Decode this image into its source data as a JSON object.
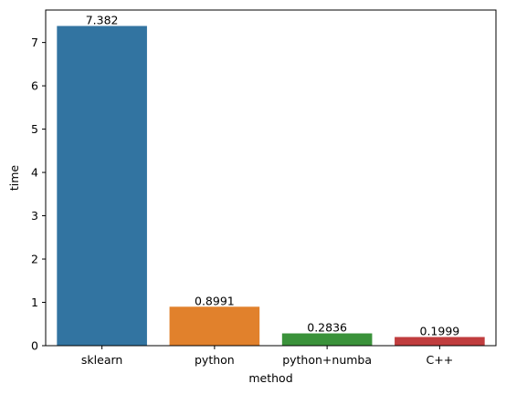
{
  "chart_data": {
    "type": "bar",
    "categories": [
      "sklearn",
      "python",
      "python+numba",
      "C++"
    ],
    "values": [
      7.382,
      0.8991,
      0.2836,
      0.1999
    ],
    "data_labels": [
      "7.382",
      "0.8991",
      "0.2836",
      "0.1999"
    ],
    "colors": [
      "#3274a1",
      "#e1812c",
      "#3a923a",
      "#c03d3e"
    ],
    "xlabel": "method",
    "ylabel": "time",
    "ylim": [
      0,
      7.75
    ],
    "yticks": [
      0,
      1,
      2,
      3,
      4,
      5,
      6,
      7
    ],
    "grid": false,
    "legend": "none"
  }
}
